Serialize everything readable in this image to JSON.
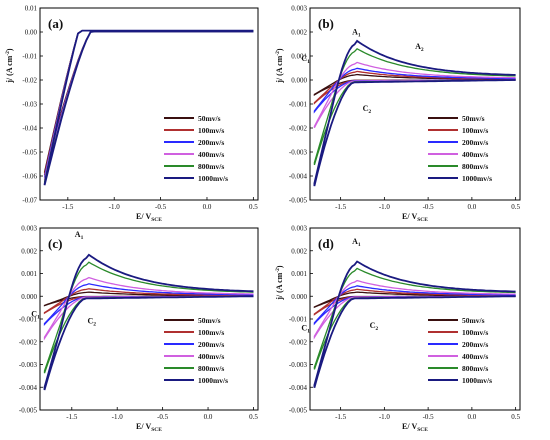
{
  "chart_data": [
    {
      "type": "line",
      "panel_label": "(a)",
      "xlabel": "E/ V",
      "xlabel_sub": "SCE",
      "ylabel": "j/ (A cm",
      "ylabel_sup": "-2",
      "ylabel_end": ")",
      "ylabel_visible": true,
      "xlim": [
        -1.8,
        0.55
      ],
      "ylim": [
        -0.07,
        0.01
      ],
      "xticks": [
        -1.5,
        -1.0,
        -0.5,
        0.0,
        0.5
      ],
      "xtick_labels": [
        "-1.5",
        "-1.0",
        "-0.5",
        "0.0",
        "0.5"
      ],
      "yticks": [
        0.01,
        0.0,
        -0.01,
        -0.02,
        -0.03,
        -0.04,
        -0.05,
        -0.06,
        -0.07
      ],
      "ytick_labels": [
        "0.01",
        "0.00",
        "-0.01",
        "-0.02",
        "-0.03",
        "-0.04",
        "-0.05",
        "-0.06",
        "-0.07"
      ],
      "shape": "a",
      "peak": 0,
      "minv": -0.064,
      "legend_position": "bottom-right",
      "series": [
        {
          "name": "50mv/s",
          "color": "#3a1010",
          "scale": 1.0
        },
        {
          "name": "100mv/s",
          "color": "#b03030",
          "scale": 1.0
        },
        {
          "name": "200mv/s",
          "color": "#2a2aff",
          "scale": 1.0
        },
        {
          "name": "400mv/s",
          "color": "#d060e0",
          "scale": 1.0
        },
        {
          "name": "800mv/s",
          "color": "#2a8a2a",
          "scale": 1.0
        },
        {
          "name": "1000mv/s",
          "color": "#1a1a80",
          "scale": 1.0
        }
      ],
      "annotations": []
    },
    {
      "type": "line",
      "panel_label": "(b)",
      "xlabel": "E/ V",
      "xlabel_sub": "SCE",
      "ylabel": "j/ (A cm",
      "ylabel_sup": "-2",
      "ylabel_end": ")",
      "ylabel_visible": true,
      "xlim": [
        -1.85,
        0.55
      ],
      "ylim": [
        -0.005,
        0.003
      ],
      "xticks": [
        -1.5,
        -1.0,
        -0.5,
        0.0,
        0.5
      ],
      "xtick_labels": [
        "-1.5",
        "-1.0",
        "-0.5",
        "0.0",
        "0.5"
      ],
      "yticks": [
        0.003,
        0.002,
        0.001,
        0.0,
        -0.001,
        -0.002,
        -0.003,
        -0.004,
        -0.005
      ],
      "ytick_labels": [
        "0.003",
        "0.002",
        "0.001",
        "0.000",
        "-0.001",
        "-0.002",
        "-0.003",
        "-0.004",
        "-0.005"
      ],
      "shape": "cv",
      "peak": 0.0015,
      "minv": -0.0043,
      "legend_position": "bottom-right",
      "series": [
        {
          "name": "50mv/s",
          "color": "#3a1010",
          "scale": 0.14
        },
        {
          "name": "100mv/s",
          "color": "#b03030",
          "scale": 0.22
        },
        {
          "name": "200mv/s",
          "color": "#2a2aff",
          "scale": 0.3
        },
        {
          "name": "400mv/s",
          "color": "#d060e0",
          "scale": 0.45
        },
        {
          "name": "800mv/s",
          "color": "#2a8a2a",
          "scale": 0.8
        },
        {
          "name": "1000mv/s",
          "color": "#1a1a80",
          "scale": 1.0
        }
      ],
      "annotations": [
        {
          "text": "A",
          "sub": "1",
          "x": -1.32,
          "y": 0.0019
        },
        {
          "text": "A",
          "sub": "2",
          "x": -0.6,
          "y": 0.0013
        },
        {
          "text": "C",
          "sub": "1",
          "x": -1.9,
          "y": 0.0008
        },
        {
          "text": "C",
          "sub": "2",
          "x": -1.2,
          "y": -0.0013
        }
      ]
    },
    {
      "type": "line",
      "panel_label": "(c)",
      "xlabel": "E/ V",
      "xlabel_sub": "SCE",
      "ylabel": "j/ (A cm",
      "ylabel_sup": "-2",
      "ylabel_end": ")",
      "ylabel_visible": false,
      "xlim": [
        -1.85,
        0.55
      ],
      "ylim": [
        -0.005,
        0.003
      ],
      "xticks": [
        -1.5,
        -1.0,
        -0.5,
        0.0,
        0.5
      ],
      "xtick_labels": [
        "-1.5",
        "-1.0",
        "-0.5",
        "0.0",
        "0.5"
      ],
      "yticks": [
        0.003,
        0.002,
        0.001,
        0.0,
        -0.001,
        -0.002,
        -0.003,
        -0.004,
        -0.005
      ],
      "ytick_labels": [
        "0.003",
        "0.002",
        "0.001",
        "0.000",
        "-0.001",
        "-0.002",
        "-0.003",
        "-0.004",
        "-0.005"
      ],
      "shape": "cv",
      "peak": 0.0017,
      "minv": -0.004,
      "legend_position": "bottom-right",
      "series": [
        {
          "name": "50mv/s",
          "color": "#3a1010",
          "scale": 0.1
        },
        {
          "name": "100mv/s",
          "color": "#b03030",
          "scale": 0.18
        },
        {
          "name": "200mv/s",
          "color": "#2a2aff",
          "scale": 0.3
        },
        {
          "name": "400mv/s",
          "color": "#d060e0",
          "scale": 0.45
        },
        {
          "name": "800mv/s",
          "color": "#2a8a2a",
          "scale": 0.82
        },
        {
          "name": "1000mv/s",
          "color": "#1a1a80",
          "scale": 1.0
        }
      ],
      "annotations": [
        {
          "text": "A",
          "sub": "1",
          "x": -1.42,
          "y": 0.0026
        },
        {
          "text": "C",
          "sub": "1",
          "x": -1.9,
          "y": -0.0009
        },
        {
          "text": "C",
          "sub": "2",
          "x": -1.28,
          "y": -0.0012
        }
      ]
    },
    {
      "type": "line",
      "panel_label": "(d)",
      "xlabel": "E/ V",
      "xlabel_sub": "SCE",
      "ylabel": "j/ (A cm",
      "ylabel_sup": "-2",
      "ylabel_end": ")",
      "ylabel_visible": true,
      "xlim": [
        -1.85,
        0.55
      ],
      "ylim": [
        -0.005,
        0.003
      ],
      "xticks": [
        -1.5,
        -1.0,
        -0.5,
        0.0,
        0.5
      ],
      "xtick_labels": [
        "-1.5",
        "-1.0",
        "-0.5",
        "0.0",
        "0.5"
      ],
      "yticks": [
        0.003,
        0.002,
        0.001,
        0.0,
        -0.001,
        -0.002,
        -0.003,
        -0.004,
        -0.005
      ],
      "ytick_labels": [
        "0.003",
        "0.002",
        "0.001",
        "0.000",
        "-0.001",
        "-0.002",
        "-0.003",
        "-0.004",
        "-0.005"
      ],
      "shape": "cv",
      "peak": 0.0014,
      "minv": -0.0039,
      "legend_position": "bottom-right",
      "series": [
        {
          "name": "50mv/s",
          "color": "#3a1010",
          "scale": 0.12
        },
        {
          "name": "100mv/s",
          "color": "#b03030",
          "scale": 0.2
        },
        {
          "name": "200mv/s",
          "color": "#2a2aff",
          "scale": 0.3
        },
        {
          "name": "400mv/s",
          "color": "#d060e0",
          "scale": 0.45
        },
        {
          "name": "800mv/s",
          "color": "#2a8a2a",
          "scale": 0.8
        },
        {
          "name": "1000mv/s",
          "color": "#1a1a80",
          "scale": 1.0
        }
      ],
      "annotations": [
        {
          "text": "A",
          "sub": "1",
          "x": -1.32,
          "y": 0.0023
        },
        {
          "text": "C",
          "sub": "1",
          "x": -1.9,
          "y": -0.0015
        },
        {
          "text": "C",
          "sub": "2",
          "x": -1.12,
          "y": -0.0014
        }
      ]
    }
  ]
}
